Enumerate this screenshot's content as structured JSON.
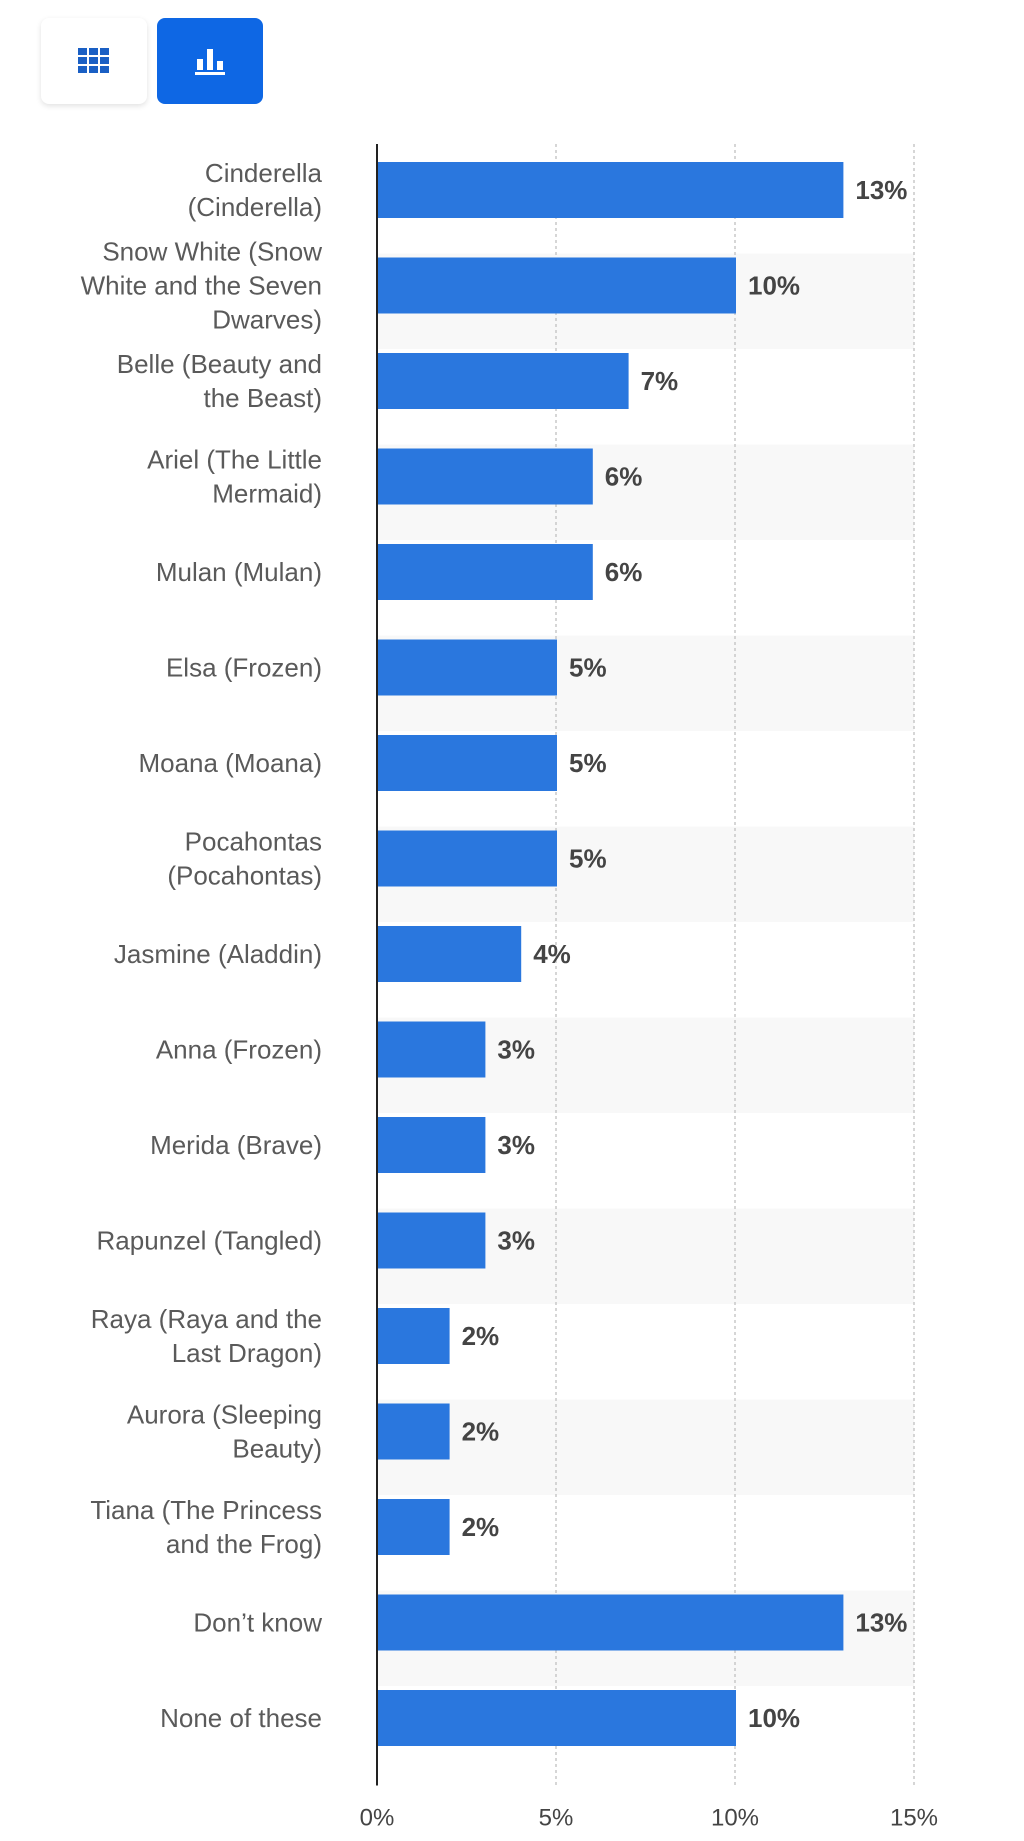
{
  "toolbar": {
    "buttons": [
      {
        "icon": "table-grid-icon",
        "active": false
      },
      {
        "icon": "bar-chart-icon",
        "active": true
      }
    ],
    "accent": "#0e67e4"
  },
  "chart_data": {
    "type": "bar",
    "orientation": "horizontal",
    "categories": [
      "Cinderella (Cinderella)",
      "Snow White (Snow White and the Seven Dwarves)",
      "Belle (Beauty and the Beast)",
      "Ariel (The Little Mermaid)",
      "Mulan (Mulan)",
      "Elsa (Frozen)",
      "Moana (Moana)",
      "Pocahontas (Pocahontas)",
      "Jasmine (Aladdin)",
      "Anna (Frozen)",
      "Merida (Brave)",
      "Rapunzel (Tangled)",
      "Raya (Raya and the Last Dragon)",
      "Aurora (Sleeping Beauty)",
      "Tiana (The Princess and the Frog)",
      "Don’t know",
      "None of these"
    ],
    "values": [
      13,
      10,
      7,
      6,
      6,
      5,
      5,
      5,
      4,
      3,
      3,
      3,
      2,
      2,
      2,
      13,
      10
    ],
    "value_labels": [
      "13%",
      "10%",
      "7%",
      "6%",
      "6%",
      "5%",
      "5%",
      "5%",
      "4%",
      "3%",
      "3%",
      "3%",
      "2%",
      "2%",
      "2%",
      "13%",
      "10%"
    ],
    "x_ticks": [
      "0%",
      "5%",
      "10%",
      "15%"
    ],
    "xlim": [
      0,
      15
    ],
    "grid": true,
    "bar_color": "#2a77de"
  }
}
